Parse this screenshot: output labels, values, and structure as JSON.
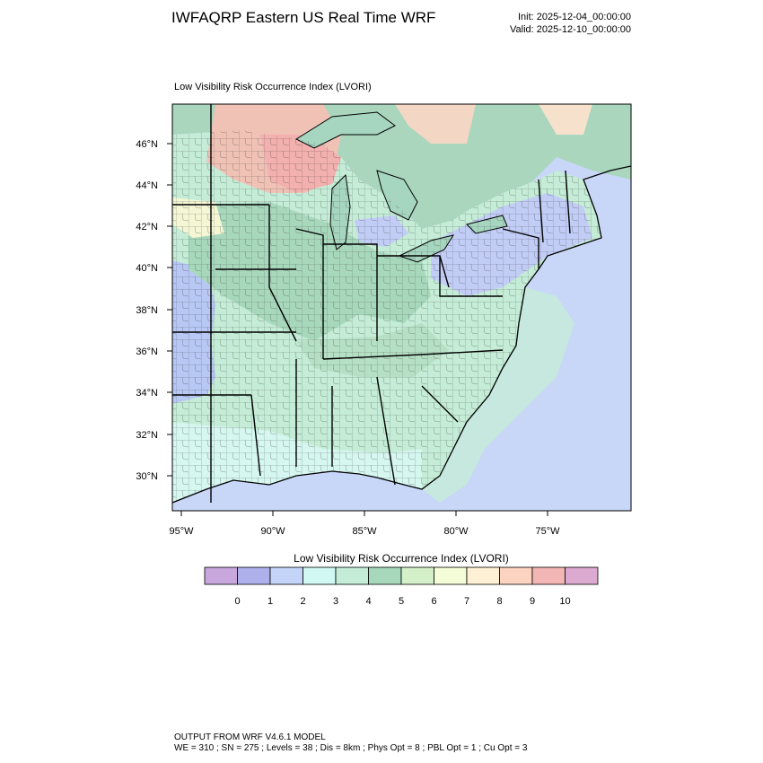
{
  "header": {
    "title": "IWFAQRP Eastern US Real Time WRF",
    "init": "Init: 2025-12-04_00:00:00",
    "valid": "Valid: 2025-12-10_00:00:00"
  },
  "plot": {
    "subtitle": "Low Visibility Risk Occurrence Index   (LVORI)",
    "lat_labels": [
      "46°N",
      "44°N",
      "42°N",
      "40°N",
      "38°N",
      "36°N",
      "34°N",
      "32°N",
      "30°N"
    ],
    "lon_labels": [
      "95°W",
      "90°W",
      "85°W",
      "80°W",
      "75°W"
    ]
  },
  "colorbar": {
    "title": "Low Visibility Risk Occurrence Index  (LVORI)",
    "labels": [
      "0",
      "1",
      "2",
      "3",
      "4",
      "5",
      "6",
      "7",
      "8",
      "9",
      "10"
    ],
    "colors": [
      "#c8a8dc",
      "#aeb0ec",
      "#c4d4f8",
      "#d2f8f4",
      "#c4ecd6",
      "#a8d8bc",
      "#d4f0c8",
      "#f4fcd8",
      "#fef0d4",
      "#fcd2c0",
      "#f2b6b4",
      "#dcaad0"
    ]
  },
  "footer": {
    "line1": "OUTPUT FROM WRF V4.6.1 MODEL",
    "line2": "WE = 310 ; SN = 275 ; Levels = 38 ; Dis = 8km ; Phys Opt = 8 ; PBL Opt = 1 ; Cu Opt = 3"
  }
}
